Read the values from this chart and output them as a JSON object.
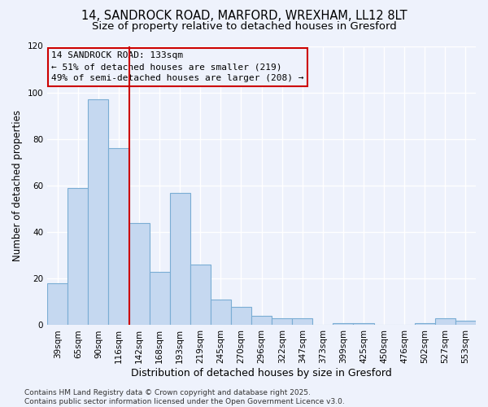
{
  "title1": "14, SANDROCK ROAD, MARFORD, WREXHAM, LL12 8LT",
  "title2": "Size of property relative to detached houses in Gresford",
  "xlabel": "Distribution of detached houses by size in Gresford",
  "ylabel": "Number of detached properties",
  "categories": [
    "39sqm",
    "65sqm",
    "90sqm",
    "116sqm",
    "142sqm",
    "168sqm",
    "193sqm",
    "219sqm",
    "245sqm",
    "270sqm",
    "296sqm",
    "322sqm",
    "347sqm",
    "373sqm",
    "399sqm",
    "425sqm",
    "450sqm",
    "476sqm",
    "502sqm",
    "527sqm",
    "553sqm"
  ],
  "values": [
    18,
    59,
    97,
    76,
    44,
    23,
    57,
    26,
    11,
    8,
    4,
    3,
    3,
    0,
    1,
    1,
    0,
    0,
    1,
    3,
    2
  ],
  "bar_color": "#c5d8f0",
  "bar_edge_color": "#7aadd4",
  "vline_color": "#cc0000",
  "vline_pos": 3.5,
  "annotation_line1": "14 SANDROCK ROAD: 133sqm",
  "annotation_line2": "← 51% of detached houses are smaller (219)",
  "annotation_line3": "49% of semi-detached houses are larger (208) →",
  "annotation_box_color": "#cc0000",
  "annotation_box_bg": "#eef2fc",
  "ylim": [
    0,
    120
  ],
  "yticks": [
    0,
    20,
    40,
    60,
    80,
    100,
    120
  ],
  "background_color": "#eef2fc",
  "grid_color": "#ffffff",
  "footer": "Contains HM Land Registry data © Crown copyright and database right 2025.\nContains public sector information licensed under the Open Government Licence v3.0.",
  "title_fontsize": 10.5,
  "subtitle_fontsize": 9.5,
  "annotation_fontsize": 8,
  "ylabel_fontsize": 8.5,
  "xlabel_fontsize": 9,
  "tick_fontsize": 7.5,
  "footer_fontsize": 6.5
}
